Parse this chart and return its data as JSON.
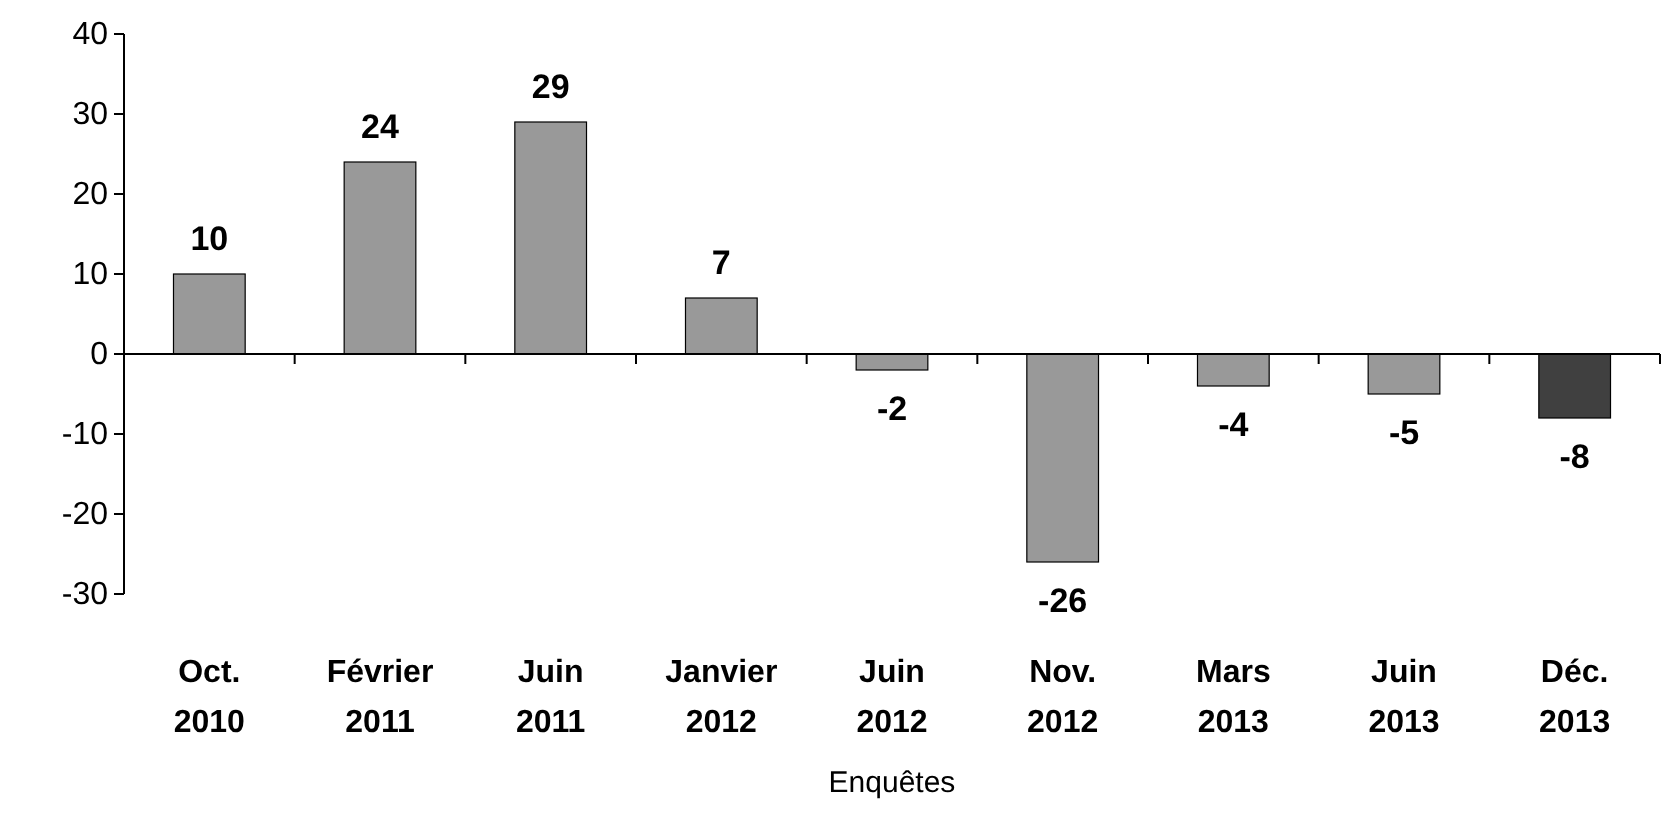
{
  "chart_data": {
    "type": "bar",
    "xlabel": "Enquêtes",
    "categories": [
      "Oct. 2010",
      "Février 2011",
      "Juin 2011",
      "Janvier 2012",
      "Juin 2012",
      "Nov. 2012",
      "Mars 2013",
      "Juin 2013",
      "Déc. 2013"
    ],
    "values": [
      10,
      24,
      29,
      7,
      -2,
      -26,
      -4,
      -5,
      -8
    ],
    "colors": [
      "#999999",
      "#999999",
      "#999999",
      "#999999",
      "#999999",
      "#999999",
      "#999999",
      "#999999",
      "#404040"
    ],
    "ylim": [
      -30,
      40
    ],
    "yticks": [
      -30,
      -20,
      -10,
      0,
      10,
      20,
      30,
      40
    ],
    "data_labels": true
  }
}
